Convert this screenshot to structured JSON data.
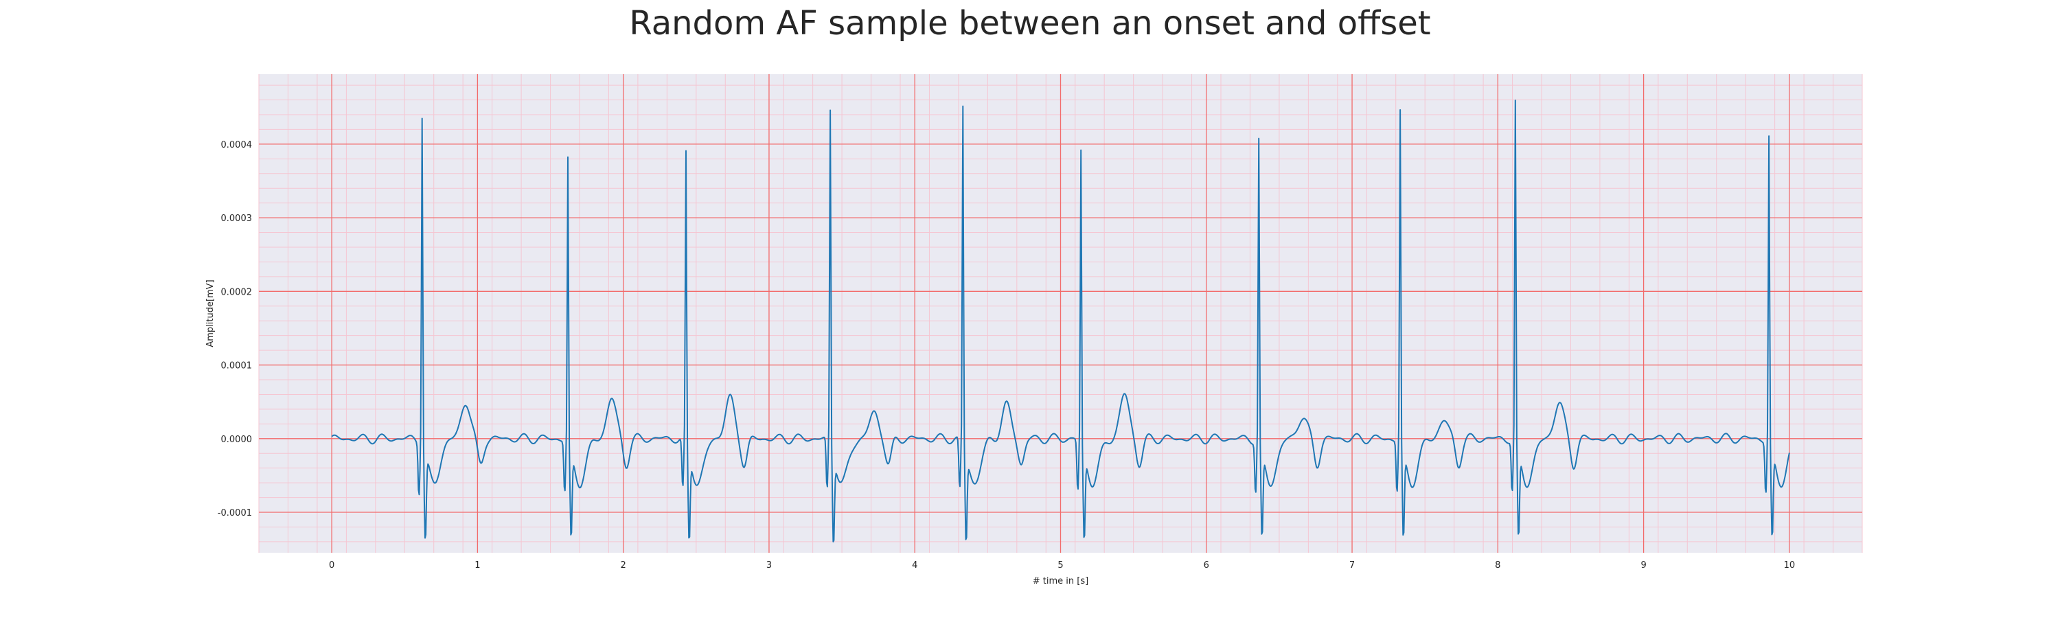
{
  "chart_data": {
    "type": "line",
    "title": "Random AF sample between an onset and offset",
    "xlabel": "# time in [s]",
    "ylabel": "Amplitude[mV]",
    "xlim": [
      -0.5,
      10.5
    ],
    "ylim": [
      -0.000155,
      0.000495
    ],
    "xticks": [
      0,
      1,
      2,
      3,
      4,
      5,
      6,
      7,
      8,
      9,
      10
    ],
    "yticks": [
      -0.0001,
      0.0,
      0.0001,
      0.0002,
      0.0003,
      0.0004
    ],
    "ytick_labels": [
      "-0.0001",
      "0.0000",
      "0.0001",
      "0.0002",
      "0.0003",
      "0.0004"
    ],
    "grid": true,
    "minor_grid": true,
    "series": [
      {
        "color": "#1f77b4",
        "beats": [
          {
            "t": 0.62,
            "peak": 0.00045,
            "after": 5e-05
          },
          {
            "t": 1.62,
            "peak": 0.00039,
            "after": 5.5e-05
          },
          {
            "t": 2.43,
            "peak": 0.000395,
            "after": 5.5e-05
          },
          {
            "t": 3.42,
            "peak": 0.000455,
            "after": 3.5e-05
          },
          {
            "t": 4.33,
            "peak": 0.00046,
            "after": 4.5e-05
          },
          {
            "t": 5.14,
            "peak": 0.0004,
            "after": 6e-05
          },
          {
            "t": 6.36,
            "peak": 0.000415,
            "after": 3e-05
          },
          {
            "t": 7.33,
            "peak": 0.000455,
            "after": 2.5e-05
          },
          {
            "t": 8.12,
            "peak": 0.000465,
            "after": 5e-05
          },
          {
            "t": 9.86,
            "peak": 0.00042,
            "after": 0.0
          }
        ],
        "x": [
          0.0,
          0.5,
          0.55,
          0.58,
          0.6,
          0.62,
          0.64,
          0.66,
          0.7,
          0.8,
          0.95,
          1.0,
          1.05,
          1.2,
          1.55,
          1.6,
          1.62,
          1.64,
          1.66,
          1.75,
          1.95,
          2.0,
          2.05,
          2.38,
          2.41,
          2.43,
          2.45,
          2.48,
          2.6,
          2.75,
          2.8,
          2.85,
          3.37,
          3.4,
          3.42,
          3.44,
          3.47,
          3.6,
          3.7,
          3.75,
          3.8,
          4.28,
          4.31,
          4.33,
          4.35,
          4.38,
          4.5,
          4.64,
          4.7,
          4.75,
          5.09,
          5.12,
          5.14,
          5.16,
          5.19,
          5.3,
          5.45,
          5.5,
          5.55,
          6.31,
          6.34,
          6.36,
          6.38,
          6.41,
          6.55,
          6.62,
          6.67,
          6.72,
          7.28,
          7.31,
          7.33,
          7.35,
          7.38,
          7.5,
          7.65,
          7.7,
          7.75,
          8.07,
          8.1,
          8.12,
          8.14,
          8.17,
          8.3,
          8.45,
          8.5,
          8.55,
          9.81,
          9.84,
          9.86,
          9.88,
          9.91,
          10.0
        ],
        "y": [
          -5e-06,
          3e-06,
          1.5e-05,
          -7e-05,
          0.0,
          0.00045,
          0.0,
          -0.000125,
          -9e-05,
          -2e-05,
          2e-05,
          5e-05,
          -3e-05,
          -5e-06,
          2e-05,
          -1e-05,
          0.00039,
          -2e-05,
          -0.0001,
          -5e-05,
          2e-05,
          5.5e-05,
          -5e-05,
          2e-05,
          -6e-05,
          0.000395,
          -2e-05,
          -0.00011,
          -3e-05,
          4e-05,
          5.5e-05,
          -2e-05,
          2e-05,
          -7e-05,
          0.000455,
          0.0,
          -0.000115,
          -3e-05,
          2e-05,
          3.5e-05,
          -2e-05,
          2e-05,
          -6e-05,
          0.00046,
          0.0,
          -0.00012,
          -4e-05,
          2e-05,
          4.5e-05,
          -2e-05,
          2e-05,
          -5e-05,
          0.0004,
          -2e-05,
          -0.00012,
          -3e-05,
          3e-05,
          6e-05,
          -2e-05,
          2e-05,
          -5e-05,
          0.000415,
          -2e-05,
          -0.000115,
          -3e-05,
          1.5e-05,
          3e-05,
          -1e-05,
          2e-05,
          -8e-05,
          0.000455,
          -2e-05,
          -0.000115,
          -3e-05,
          2e-05,
          2.5e-05,
          -2e-05,
          2e-05,
          -8e-05,
          0.000465,
          -2e-05,
          -8e-05,
          -3e-05,
          4e-05,
          5e-05,
          -2e-05,
          1e-05,
          -8e-05,
          0.00042,
          -2e-05,
          -0.00012,
          -4e-05
        ]
      }
    ]
  }
}
